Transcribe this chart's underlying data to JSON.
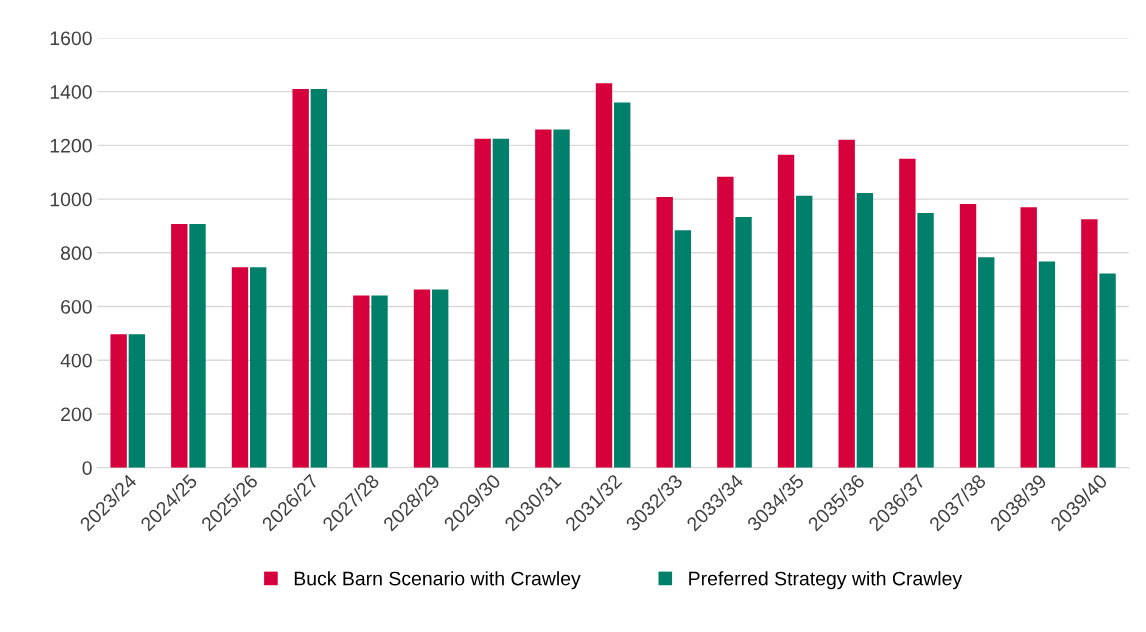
{
  "chart_data": {
    "type": "bar",
    "categories": [
      "2023/24",
      "2024/25",
      "2025/26",
      "2026/27",
      "2027/28",
      "2028/29",
      "2029/30",
      "2030/31",
      "2031/32",
      "3032/33",
      "2033/34",
      "3034/35",
      "2035/36",
      "2036/37",
      "2037/38",
      "2038/39",
      "2039/40"
    ],
    "series": [
      {
        "name": "Buck Barn Scenario with Crawley",
        "color": "#d6003c",
        "values": [
          497,
          907,
          746,
          1410,
          641,
          663,
          1225,
          1259,
          1431,
          1008,
          1083,
          1165,
          1221,
          1150,
          982,
          970,
          925
        ]
      },
      {
        "name": "Preferred Strategy with Crawley",
        "color": "#00806a",
        "values": [
          497,
          907,
          746,
          1410,
          641,
          663,
          1225,
          1259,
          1360,
          884,
          933,
          1012,
          1023,
          948,
          783,
          768,
          723
        ]
      }
    ],
    "ylim": [
      0,
      1600
    ],
    "yticks": [
      0,
      200,
      400,
      600,
      800,
      1000,
      1200,
      1400,
      1600
    ],
    "grid": "y",
    "legend": "bottom"
  }
}
